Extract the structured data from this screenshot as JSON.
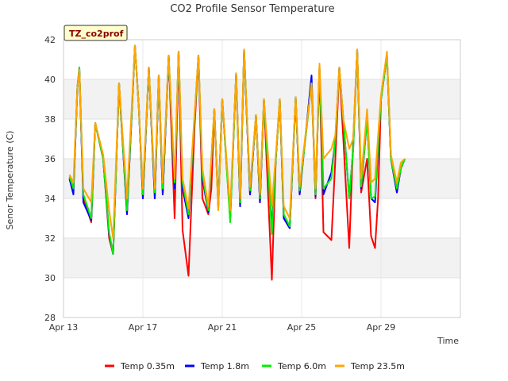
{
  "chart_data": {
    "type": "line",
    "title": "CO2 Profile Sensor Temperature",
    "xlabel": "Time",
    "ylabel": "Senor Temperature (C)",
    "ylim": [
      28,
      42
    ],
    "yticks": [
      28,
      30,
      32,
      34,
      36,
      38,
      40,
      42
    ],
    "xlim": [
      0,
      20
    ],
    "xticks": [
      {
        "value": 0,
        "label": "Apr 13"
      },
      {
        "value": 4,
        "label": "Apr 17"
      },
      {
        "value": 8,
        "label": "Apr 21"
      },
      {
        "value": 12,
        "label": "Apr 25"
      },
      {
        "value": 16,
        "label": "Apr 29"
      }
    ],
    "badge": "TZ_co2prof",
    "grid": true,
    "legend_position": "bottom",
    "series": [
      {
        "name": "Temp 0.35m",
        "color": "#ff0000",
        "x": [
          0.3,
          0.5,
          0.7,
          0.8,
          1.0,
          1.4,
          1.6,
          2.0,
          2.3,
          2.5,
          2.8,
          3.2,
          3.6,
          3.8,
          4.0,
          4.3,
          4.6,
          4.8,
          5.0,
          5.3,
          5.6,
          5.8,
          6.0,
          6.3,
          6.6,
          6.8,
          7.0,
          7.3,
          7.45,
          7.6,
          7.8,
          8.0,
          8.2,
          8.4,
          8.7,
          8.9,
          9.1,
          9.4,
          9.7,
          9.9,
          10.1,
          10.5,
          10.7,
          10.9,
          11.1,
          11.4,
          11.7,
          11.9,
          12.1,
          12.5,
          12.7,
          12.9,
          13.1,
          13.5,
          13.7,
          13.9,
          14.1,
          14.4,
          14.6,
          14.8,
          15.0,
          15.3,
          15.5,
          15.7,
          15.85,
          16.0,
          16.3,
          16.5,
          16.8,
          17.0,
          17.2
        ],
        "y": [
          35.0,
          34.4,
          39.6,
          40.5,
          34.0,
          32.8,
          37.8,
          36.0,
          32.0,
          31.2,
          39.8,
          33.2,
          41.7,
          38.5,
          34.0,
          40.6,
          34.0,
          40.2,
          34.2,
          41.2,
          33.0,
          41.4,
          32.4,
          30.1,
          37.5,
          41.2,
          34.0,
          33.2,
          34.5,
          38.5,
          33.5,
          39.0,
          36.0,
          33.0,
          40.3,
          33.6,
          41.5,
          34.2,
          38.2,
          33.8,
          39.0,
          29.9,
          36.0,
          39.0,
          33.0,
          32.5,
          39.1,
          34.2,
          36.2,
          39.8,
          34.0,
          40.6,
          32.3,
          31.9,
          36.0,
          40.6,
          37.0,
          31.5,
          37.0,
          41.5,
          34.3,
          36.0,
          32.1,
          31.5,
          34.0,
          39.0,
          41.2,
          36.0,
          34.3,
          35.5,
          36.0
        ]
      },
      {
        "name": "Temp 1.8m",
        "color": "#0000ff",
        "x": [
          0.3,
          0.5,
          0.7,
          0.8,
          1.0,
          1.4,
          1.6,
          2.0,
          2.3,
          2.5,
          2.8,
          3.2,
          3.6,
          3.8,
          4.0,
          4.3,
          4.6,
          4.8,
          5.0,
          5.3,
          5.6,
          5.8,
          6.0,
          6.3,
          6.6,
          6.8,
          7.0,
          7.3,
          7.6,
          7.8,
          8.0,
          8.4,
          8.7,
          8.9,
          9.1,
          9.4,
          9.7,
          9.9,
          10.1,
          10.5,
          10.7,
          10.9,
          11.1,
          11.4,
          11.7,
          11.9,
          12.1,
          12.5,
          12.7,
          12.9,
          13.1,
          13.5,
          13.7,
          13.9,
          14.1,
          14.4,
          14.6,
          14.8,
          15.0,
          15.3,
          15.5,
          15.7,
          16.0,
          16.3,
          16.5,
          16.8,
          17.0,
          17.2
        ],
        "y": [
          35.0,
          34.2,
          39.6,
          40.6,
          33.8,
          32.9,
          37.8,
          36.0,
          32.2,
          31.2,
          39.8,
          33.2,
          41.7,
          38.5,
          34.0,
          40.6,
          34.0,
          40.2,
          34.2,
          41.2,
          34.5,
          41.4,
          34.5,
          33.0,
          38.0,
          41.2,
          35.0,
          33.3,
          38.5,
          33.6,
          39.0,
          33.0,
          40.3,
          33.6,
          41.5,
          34.2,
          38.2,
          33.8,
          39.0,
          32.5,
          36.0,
          39.0,
          33.0,
          32.5,
          39.1,
          34.2,
          36.2,
          40.2,
          34.1,
          40.6,
          34.2,
          35.3,
          37.0,
          40.6,
          38.0,
          34.0,
          36.5,
          41.5,
          34.5,
          38.0,
          34.0,
          33.8,
          39.0,
          41.2,
          36.0,
          34.3,
          35.5,
          36.0
        ]
      },
      {
        "name": "Temp 6.0m",
        "color": "#00ee00",
        "x": [
          0.3,
          0.5,
          0.7,
          0.8,
          1.0,
          1.4,
          1.6,
          2.0,
          2.3,
          2.5,
          2.8,
          3.2,
          3.6,
          3.8,
          4.0,
          4.3,
          4.6,
          4.8,
          5.0,
          5.3,
          5.6,
          5.8,
          6.0,
          6.3,
          6.6,
          6.8,
          7.0,
          7.3,
          7.6,
          7.8,
          8.0,
          8.4,
          8.7,
          8.9,
          9.1,
          9.4,
          9.7,
          9.9,
          10.1,
          10.5,
          10.7,
          10.9,
          11.1,
          11.4,
          11.7,
          11.9,
          12.1,
          12.5,
          12.7,
          12.9,
          13.1,
          13.5,
          13.7,
          13.9,
          14.1,
          14.4,
          14.6,
          14.8,
          15.0,
          15.3,
          15.5,
          15.7,
          16.0,
          16.3,
          16.5,
          16.8,
          17.0,
          17.2
        ],
        "y": [
          35.1,
          34.5,
          39.6,
          40.6,
          34.2,
          33.0,
          37.8,
          36.0,
          32.3,
          31.2,
          39.8,
          33.4,
          41.7,
          38.5,
          34.2,
          40.6,
          34.3,
          40.2,
          34.5,
          41.2,
          34.8,
          41.4,
          34.8,
          33.2,
          38.0,
          41.2,
          35.2,
          33.4,
          38.5,
          33.6,
          39.0,
          32.8,
          40.3,
          33.8,
          41.5,
          34.4,
          38.2,
          34.0,
          39.0,
          32.2,
          36.0,
          39.0,
          33.2,
          32.6,
          39.1,
          34.4,
          36.2,
          39.8,
          34.2,
          40.6,
          34.5,
          35.0,
          37.0,
          40.6,
          38.0,
          34.0,
          36.5,
          41.5,
          34.6,
          38.0,
          34.0,
          34.1,
          39.0,
          41.2,
          36.0,
          34.5,
          35.5,
          36.0
        ]
      },
      {
        "name": "Temp 23.5m",
        "color": "#ffa500",
        "x": [
          0.3,
          0.5,
          0.7,
          0.8,
          1.0,
          1.4,
          1.6,
          2.0,
          2.3,
          2.5,
          2.8,
          3.2,
          3.6,
          3.8,
          4.0,
          4.3,
          4.6,
          4.8,
          5.0,
          5.3,
          5.6,
          5.8,
          6.0,
          6.3,
          6.6,
          6.8,
          7.0,
          7.3,
          7.6,
          7.8,
          8.0,
          8.4,
          8.7,
          8.9,
          9.1,
          9.4,
          9.7,
          9.9,
          10.1,
          10.5,
          10.7,
          10.9,
          11.1,
          11.4,
          11.7,
          11.9,
          12.1,
          12.5,
          12.7,
          12.9,
          13.1,
          13.5,
          13.7,
          13.9,
          14.1,
          14.4,
          14.6,
          14.8,
          15.0,
          15.3,
          15.5,
          15.7,
          16.0,
          16.3,
          16.5,
          16.8,
          17.0,
          17.2
        ],
        "y": [
          35.2,
          34.8,
          39.6,
          40.5,
          34.5,
          33.8,
          37.8,
          36.2,
          33.4,
          32.0,
          39.8,
          34.0,
          41.7,
          38.5,
          34.5,
          40.6,
          34.5,
          40.2,
          34.8,
          41.2,
          35.0,
          41.4,
          35.0,
          33.5,
          38.2,
          41.2,
          35.5,
          33.6,
          38.5,
          33.4,
          39.0,
          33.4,
          40.3,
          34.0,
          41.5,
          34.6,
          38.2,
          34.2,
          39.0,
          33.6,
          36.2,
          39.0,
          33.6,
          33.0,
          39.1,
          34.6,
          36.4,
          39.8,
          34.5,
          40.8,
          36.0,
          36.5,
          37.2,
          40.6,
          38.0,
          36.5,
          37.0,
          41.5,
          35.0,
          38.5,
          34.8,
          35.0,
          39.2,
          41.4,
          36.2,
          34.8,
          35.8,
          36.0
        ]
      }
    ]
  }
}
